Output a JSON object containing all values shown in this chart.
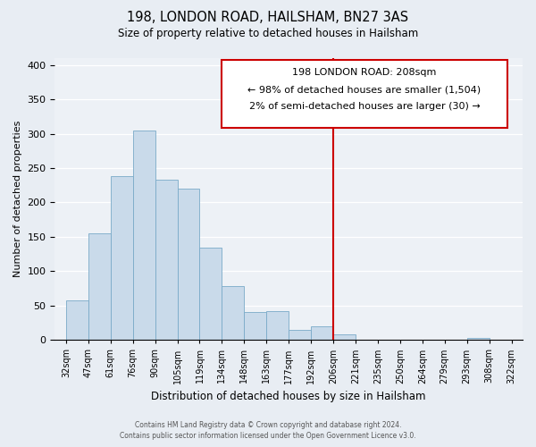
{
  "title": "198, LONDON ROAD, HAILSHAM, BN27 3AS",
  "subtitle": "Size of property relative to detached houses in Hailsham",
  "xlabel": "Distribution of detached houses by size in Hailsham",
  "ylabel": "Number of detached properties",
  "bar_color": "#c9daea",
  "bar_edge_color": "#7aaac8",
  "bin_labels": [
    "32sqm",
    "47sqm",
    "61sqm",
    "76sqm",
    "90sqm",
    "105sqm",
    "119sqm",
    "134sqm",
    "148sqm",
    "163sqm",
    "177sqm",
    "192sqm",
    "206sqm",
    "221sqm",
    "235sqm",
    "250sqm",
    "264sqm",
    "279sqm",
    "293sqm",
    "308sqm",
    "322sqm"
  ],
  "bar_heights": [
    57,
    155,
    238,
    305,
    233,
    220,
    134,
    78,
    41,
    42,
    14,
    20,
    8,
    0,
    0,
    0,
    0,
    0,
    3,
    0
  ],
  "ylim": [
    0,
    410
  ],
  "yticks": [
    0,
    50,
    100,
    150,
    200,
    250,
    300,
    350,
    400
  ],
  "vline_label_index": 12,
  "vline_color": "#cc0000",
  "annotation_title": "198 LONDON ROAD: 208sqm",
  "annotation_line1": "← 98% of detached houses are smaller (1,504)",
  "annotation_line2": "2% of semi-detached houses are larger (30) →",
  "annotation_box_color": "#cc0000",
  "footer1": "Contains HM Land Registry data © Crown copyright and database right 2024.",
  "footer2": "Contains public sector information licensed under the Open Government Licence v3.0.",
  "background_color": "#e8edf3",
  "plot_background": "#edf1f6",
  "grid_color": "#ffffff"
}
